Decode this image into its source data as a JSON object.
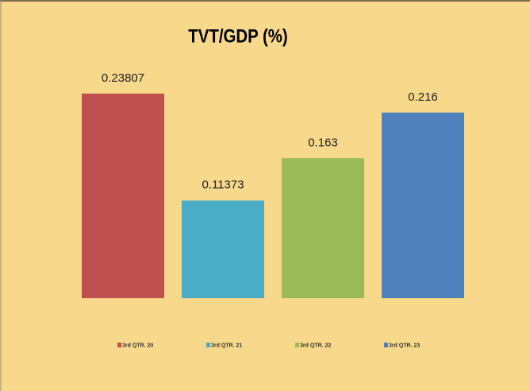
{
  "chart_data": {
    "type": "bar",
    "title": "TVT/GDP (%)",
    "series": [
      {
        "name": "3rd QTR. 20",
        "color": "#c0504d",
        "values": [
          0.23807
        ]
      },
      {
        "name": "3rd QTR. 21",
        "color": "#4bacc6",
        "values": [
          0.11373
        ]
      },
      {
        "name": "3rd QTR. 22",
        "color": "#9bbb59",
        "values": [
          0.163
        ]
      },
      {
        "name": "3rd QTR. 23",
        "color": "#4f81bd",
        "values": [
          0.216
        ]
      }
    ],
    "legend": "bottom"
  }
}
